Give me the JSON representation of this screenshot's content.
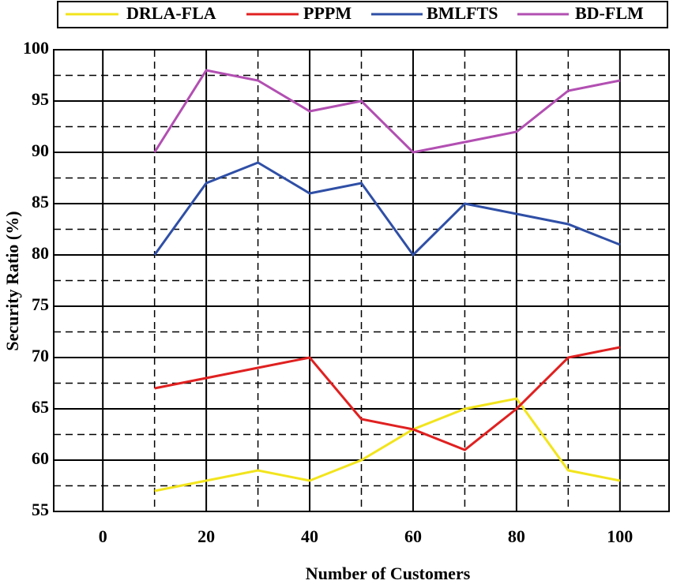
{
  "chart_data": {
    "type": "line",
    "x_label": "Number of Customers",
    "y_label": "Security Ratio (%)",
    "x": [
      10,
      20,
      30,
      40,
      50,
      60,
      70,
      80,
      90,
      100
    ],
    "series": [
      {
        "name": "DRLA-FLA",
        "color": "#f2e41c",
        "values": [
          57,
          58,
          59,
          58,
          60,
          63,
          65,
          66,
          59,
          58
        ]
      },
      {
        "name": "PPPM",
        "color": "#e02020",
        "values": [
          67,
          68,
          69,
          70,
          64,
          63,
          61,
          65,
          70,
          71
        ]
      },
      {
        "name": "BMLFTS",
        "color": "#2f4fa6",
        "values": [
          80,
          87,
          89,
          86,
          87,
          80,
          85,
          84,
          83,
          81
        ]
      },
      {
        "name": "BD-FLM",
        "color": "#b24fb2",
        "values": [
          90,
          98,
          97,
          94,
          95,
          90,
          91,
          92,
          96,
          97
        ]
      }
    ],
    "xlim": [
      -9.5,
      109.5
    ],
    "xticks": [
      0,
      20,
      40,
      60,
      80,
      100
    ],
    "ylim": [
      55,
      100
    ],
    "yticks": [
      55,
      60,
      65,
      70,
      75,
      80,
      85,
      90,
      95,
      100
    ],
    "grid": true,
    "legend": "top"
  }
}
